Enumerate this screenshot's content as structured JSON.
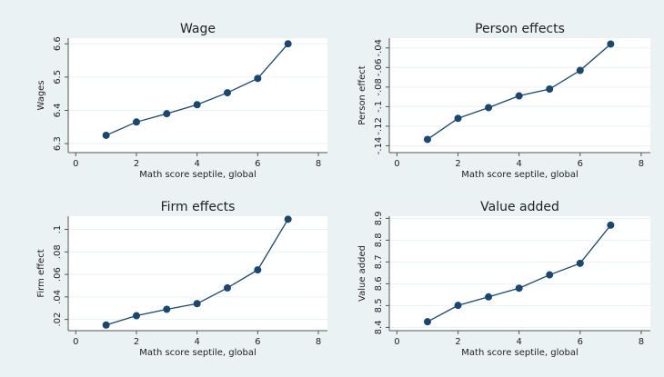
{
  "chart_data": [
    {
      "type": "line",
      "title": "Wage",
      "x_label": "Math score septile, global",
      "y_label": "Wages",
      "x": [
        1,
        2,
        3,
        4,
        5,
        6,
        7
      ],
      "values": [
        6.325,
        6.365,
        6.39,
        6.417,
        6.453,
        6.496,
        6.6
      ],
      "color": "#1a476f",
      "xlim": [
        -0.25,
        8.3
      ],
      "xticks": [
        0,
        2,
        4,
        6,
        8
      ],
      "ylim": [
        6.273,
        6.617
      ],
      "yticks": [
        6.3,
        6.4,
        6.5,
        6.6
      ],
      "grid": true
    },
    {
      "type": "line",
      "title": "Person effects",
      "x_label": "Math score septile, global",
      "y_label": "Person effect",
      "x": [
        1,
        2,
        3,
        4,
        5,
        6,
        7
      ],
      "values": [
        -0.1335,
        -0.112,
        -0.101,
        -0.089,
        -0.082,
        -0.063,
        -0.036
      ],
      "color": "#1a476f",
      "xlim": [
        -0.25,
        8.3
      ],
      "xticks": [
        0,
        2,
        4,
        6,
        8
      ],
      "ylim": [
        -0.147,
        -0.03
      ],
      "yticks": [
        {
          "value": -0.14,
          "label": "-.14"
        },
        {
          "value": -0.12,
          "label": "-.12"
        },
        {
          "value": -0.1,
          "label": "-.1"
        },
        {
          "value": -0.08,
          "label": "-.08"
        },
        {
          "value": -0.06,
          "label": "-.06"
        },
        {
          "value": -0.04,
          "label": "-.04"
        }
      ],
      "grid": true
    },
    {
      "type": "line",
      "title": "Firm effects",
      "x_label": "Math score septile, global",
      "y_label": "Firm effect",
      "x": [
        1,
        2,
        3,
        4,
        5,
        6,
        7
      ],
      "values": [
        0.015,
        0.0233,
        0.029,
        0.034,
        0.048,
        0.064,
        0.109
      ],
      "color": "#1a476f",
      "xlim": [
        -0.25,
        8.3
      ],
      "xticks": [
        0,
        2,
        4,
        6,
        8
      ],
      "ylim": [
        0.01,
        0.1117
      ],
      "yticks": [
        {
          "value": 0.02,
          "label": ".02"
        },
        {
          "value": 0.04,
          "label": ".04"
        },
        {
          "value": 0.06,
          "label": ".06"
        },
        {
          "value": 0.08,
          "label": ".08"
        },
        {
          "value": 0.1,
          "label": ".1"
        }
      ],
      "grid": true
    },
    {
      "type": "line",
      "title": "Value added",
      "x_label": "Math score septile, global",
      "y_label": "Value added",
      "x": [
        1,
        2,
        3,
        4,
        5,
        6,
        7
      ],
      "values": [
        8.426,
        8.501,
        8.54,
        8.58,
        8.641,
        8.694,
        8.869
      ],
      "color": "#1a476f",
      "xlim": [
        -0.25,
        8.3
      ],
      "xticks": [
        0,
        2,
        4,
        6,
        8
      ],
      "ylim": [
        8.385,
        8.91
      ],
      "yticks": [
        8.4,
        8.5,
        8.6,
        8.7,
        8.8,
        8.9
      ],
      "grid": true
    }
  ]
}
